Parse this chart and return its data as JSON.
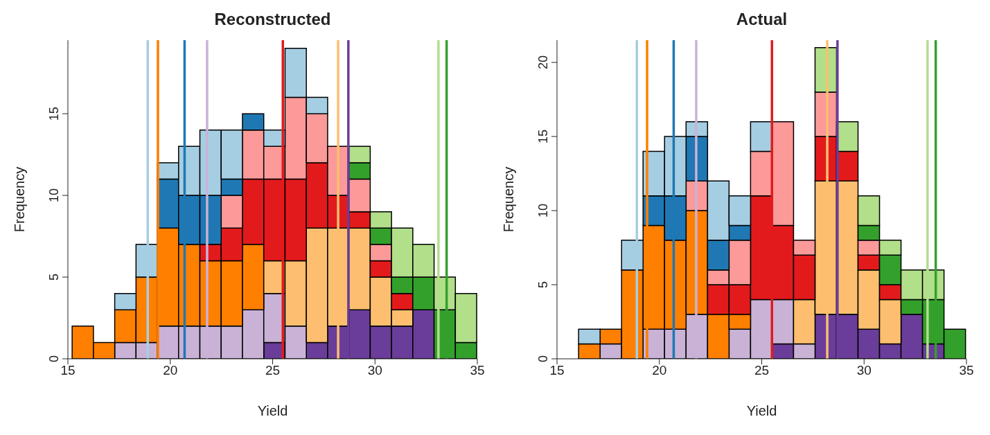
{
  "chart_data": [
    {
      "type": "bar",
      "title": "Reconstructed",
      "xlabel": "Yield",
      "ylabel": "Frequency",
      "stacked": true,
      "grid": false,
      "legend": false,
      "x": [
        15.74,
        16.78,
        17.82,
        18.86,
        19.9,
        20.94,
        21.98,
        23.02,
        24.06,
        25.1,
        26.14,
        27.18,
        28.22,
        29.26,
        30.3,
        31.34,
        32.38,
        33.42,
        34.46
      ],
      "xlim": [
        15,
        35
      ],
      "xticks": [
        15,
        20,
        25,
        30,
        35
      ],
      "ylim": [
        0,
        19.5
      ],
      "yticks": [
        0,
        5,
        10,
        15
      ],
      "series": [
        {
          "color": "#6a3d9a",
          "values": [
            0,
            0,
            0,
            0,
            0,
            0,
            0,
            0,
            0,
            1,
            0,
            1,
            2,
            3,
            2,
            2,
            3,
            0,
            0
          ]
        },
        {
          "color": "#cab2d6",
          "values": [
            0,
            0,
            1,
            1,
            2,
            2,
            2,
            2,
            3,
            3,
            2,
            0,
            0,
            0,
            0,
            0,
            0,
            0,
            0
          ]
        },
        {
          "color": "#ff7f00",
          "values": [
            2,
            1,
            2,
            4,
            6,
            5,
            4,
            4,
            4,
            0,
            0,
            0,
            0,
            0,
            0,
            0,
            0,
            0,
            0
          ]
        },
        {
          "color": "#fdbf6f",
          "values": [
            0,
            0,
            0,
            0,
            0,
            0,
            0,
            0,
            0,
            2,
            4,
            7,
            6,
            5,
            3,
            1,
            0,
            0,
            0
          ]
        },
        {
          "color": "#e31a1c",
          "values": [
            0,
            0,
            0,
            0,
            0,
            0,
            1,
            2,
            4,
            5,
            5,
            4,
            2,
            1,
            1,
            1,
            0,
            0,
            0
          ]
        },
        {
          "color": "#fb9a99",
          "values": [
            0,
            0,
            0,
            0,
            0,
            0,
            0,
            2,
            3,
            2,
            5,
            3,
            3,
            2,
            1,
            0,
            0,
            0,
            0
          ]
        },
        {
          "color": "#33a02c",
          "values": [
            0,
            0,
            0,
            0,
            0,
            0,
            0,
            0,
            0,
            0,
            0,
            0,
            0,
            1,
            1,
            1,
            2,
            3,
            1
          ]
        },
        {
          "color": "#b2df8a",
          "values": [
            0,
            0,
            0,
            0,
            0,
            0,
            0,
            0,
            0,
            0,
            0,
            0,
            0,
            1,
            1,
            3,
            2,
            2,
            3
          ]
        },
        {
          "color": "#1f78b4",
          "values": [
            0,
            0,
            0,
            0,
            3,
            3,
            3,
            1,
            1,
            0,
            0,
            0,
            0,
            0,
            0,
            0,
            0,
            0,
            0
          ]
        },
        {
          "color": "#a6cee3",
          "values": [
            0,
            0,
            1,
            2,
            1,
            3,
            4,
            3,
            0,
            1,
            3,
            1,
            0,
            0,
            0,
            0,
            0,
            0,
            0
          ]
        }
      ],
      "ref_lines": [
        {
          "axis": "x",
          "value": 18.9,
          "color": "#a6cee3"
        },
        {
          "axis": "x",
          "value": 19.4,
          "color": "#ff7f00"
        },
        {
          "axis": "x",
          "value": 20.7,
          "color": "#1f78b4"
        },
        {
          "axis": "x",
          "value": 21.8,
          "color": "#cab2d6"
        },
        {
          "axis": "x",
          "value": 25.5,
          "color": "#e31a1c"
        },
        {
          "axis": "x",
          "value": 28.2,
          "color": "#fdbf6f"
        },
        {
          "axis": "x",
          "value": 28.7,
          "color": "#6a3d9a"
        },
        {
          "axis": "x",
          "value": 33.1,
          "color": "#b2df8a"
        },
        {
          "axis": "x",
          "value": 33.5,
          "color": "#33a02c"
        }
      ]
    },
    {
      "type": "bar",
      "title": "Actual",
      "xlabel": "Yield",
      "ylabel": "Frequency",
      "stacked": true,
      "grid": false,
      "legend": false,
      "x": [
        15.53,
        16.58,
        17.63,
        18.68,
        19.73,
        20.78,
        21.83,
        22.88,
        23.93,
        24.98,
        26.03,
        27.08,
        28.13,
        29.18,
        30.23,
        31.28,
        32.33,
        33.38,
        34.43
      ],
      "xlim": [
        15,
        35
      ],
      "xticks": [
        15,
        20,
        25,
        30,
        35
      ],
      "ylim": [
        0,
        21.5
      ],
      "yticks": [
        0,
        5,
        10,
        15,
        20
      ],
      "series": [
        {
          "color": "#6a3d9a",
          "values": [
            0,
            0,
            0,
            0,
            0,
            0,
            0,
            0,
            0,
            0,
            1,
            0,
            3,
            3,
            2,
            1,
            3,
            1,
            0
          ]
        },
        {
          "color": "#cab2d6",
          "values": [
            0,
            0,
            1,
            0,
            2,
            2,
            3,
            0,
            2,
            4,
            3,
            1,
            0,
            0,
            0,
            0,
            0,
            0,
            0
          ]
        },
        {
          "color": "#ff7f00",
          "values": [
            0,
            1,
            1,
            6,
            7,
            6,
            7,
            3,
            1,
            0,
            0,
            0,
            0,
            0,
            0,
            0,
            0,
            0,
            0
          ]
        },
        {
          "color": "#fdbf6f",
          "values": [
            0,
            0,
            0,
            0,
            0,
            0,
            0,
            0,
            0,
            0,
            0,
            3,
            9,
            9,
            4,
            3,
            0,
            0,
            0
          ]
        },
        {
          "color": "#e31a1c",
          "values": [
            0,
            0,
            0,
            0,
            0,
            0,
            0,
            2,
            2,
            7,
            5,
            3,
            3,
            2,
            1,
            1,
            0,
            0,
            0
          ]
        },
        {
          "color": "#fb9a99",
          "values": [
            0,
            0,
            0,
            0,
            0,
            0,
            2,
            1,
            3,
            3,
            7,
            1,
            3,
            0,
            1,
            0,
            0,
            0,
            0
          ]
        },
        {
          "color": "#33a02c",
          "values": [
            0,
            0,
            0,
            0,
            0,
            0,
            0,
            0,
            0,
            0,
            0,
            0,
            0,
            0,
            1,
            2,
            1,
            3,
            2
          ]
        },
        {
          "color": "#b2df8a",
          "values": [
            0,
            0,
            0,
            0,
            0,
            0,
            0,
            0,
            0,
            0,
            0,
            0,
            3,
            2,
            2,
            1,
            2,
            2,
            0
          ]
        },
        {
          "color": "#1f78b4",
          "values": [
            0,
            0,
            0,
            0,
            2,
            3,
            3,
            2,
            1,
            0,
            0,
            0,
            0,
            0,
            0,
            0,
            0,
            0,
            0
          ]
        },
        {
          "color": "#a6cee3",
          "values": [
            0,
            1,
            0,
            2,
            3,
            4,
            1,
            4,
            2,
            2,
            0,
            0,
            0,
            0,
            0,
            0,
            0,
            0,
            0
          ]
        }
      ],
      "ref_lines": [
        {
          "axis": "x",
          "value": 18.9,
          "color": "#a6cee3"
        },
        {
          "axis": "x",
          "value": 19.4,
          "color": "#ff7f00"
        },
        {
          "axis": "x",
          "value": 20.7,
          "color": "#1f78b4"
        },
        {
          "axis": "x",
          "value": 21.8,
          "color": "#cab2d6"
        },
        {
          "axis": "x",
          "value": 25.5,
          "color": "#e31a1c"
        },
        {
          "axis": "x",
          "value": 28.2,
          "color": "#fdbf6f"
        },
        {
          "axis": "x",
          "value": 28.7,
          "color": "#6a3d9a"
        },
        {
          "axis": "x",
          "value": 33.1,
          "color": "#b2df8a"
        },
        {
          "axis": "x",
          "value": 33.5,
          "color": "#33a02c"
        }
      ]
    }
  ]
}
